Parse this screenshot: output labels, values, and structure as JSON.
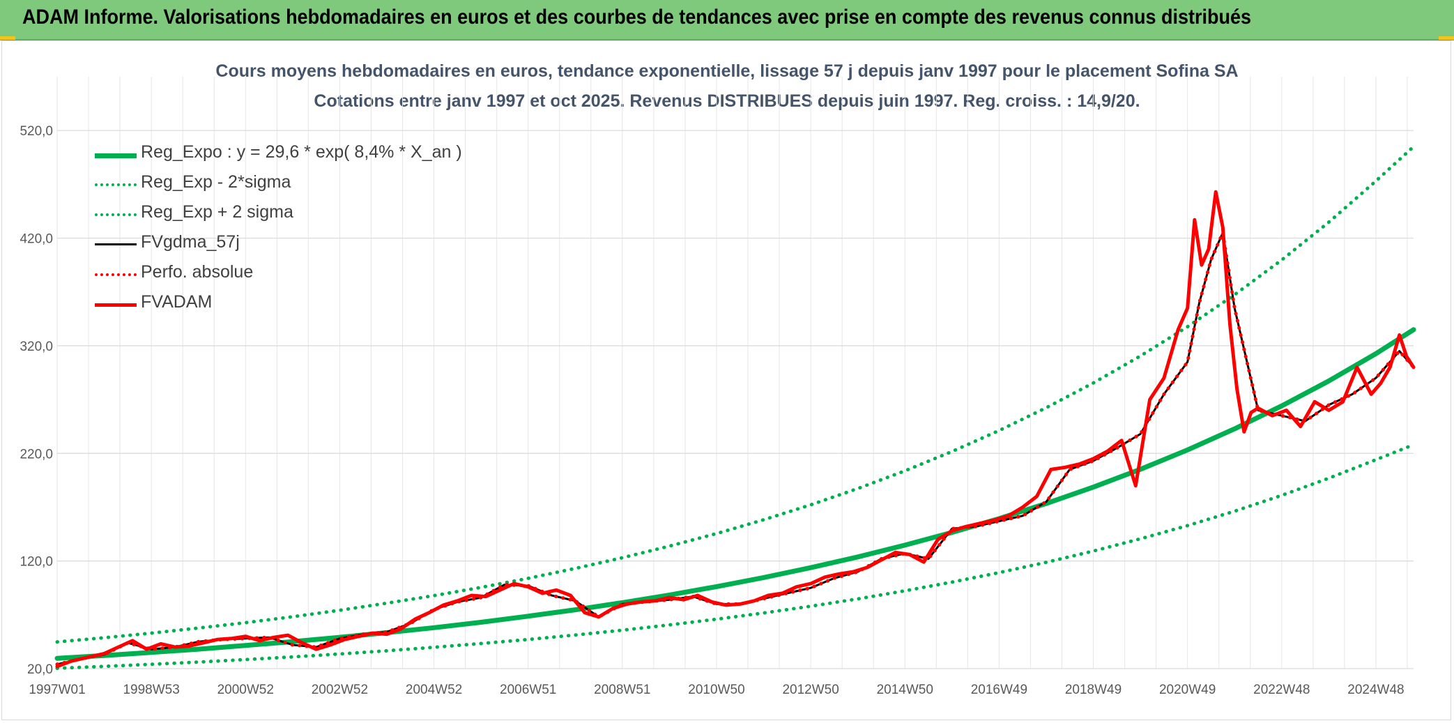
{
  "banner": {
    "title": "ADAM Informe. Valorisations hebdomadaires en euros et des courbes de tendances avec prise en compte des revenus connus distribués"
  },
  "chart_data": {
    "type": "line",
    "title": "Cours moyens hebdomadaires en euros, tendance exponentielle, lissage 57 j depuis janv 1997 pour le placement Sofina SA",
    "subtitle": "Cotations entre janv 1997 et oct 2025. Revenus DISTRIBUES depuis juin 1997. Reg. croiss. : 14,9/20.",
    "xlabel": "",
    "ylabel": "",
    "ylim": [
      20,
      570
    ],
    "yticks": [
      20,
      120,
      220,
      320,
      420,
      520
    ],
    "ytick_labels": [
      "20,0",
      "120,0",
      "220,0",
      "320,0",
      "420,0",
      "520,0"
    ],
    "xlim": [
      1997.0,
      2025.8
    ],
    "xticks": [
      1997.0,
      1999.0,
      2001.0,
      2003.0,
      2005.0,
      2007.0,
      2009.0,
      2011.0,
      2013.0,
      2015.0,
      2017.0,
      2019.0,
      2021.0,
      2023.0,
      2025.0
    ],
    "xtick_labels": [
      "1997W01",
      "1998W53",
      "2000W52",
      "2002W52",
      "2004W52",
      "2006W51",
      "2008W51",
      "2010W50",
      "2012W50",
      "2014W50",
      "2016W49",
      "2018W49",
      "2020W49",
      "2022W48",
      "2024W48"
    ],
    "grid": true,
    "legend_position": "top-left",
    "series": [
      {
        "name": "Reg_Expo : y = 29,6 * exp( 8,4% *  X_an )",
        "style": "solid-thick",
        "color": "#00b050",
        "x": [
          1997.0,
          1998.0,
          1999.0,
          2000.0,
          2001.0,
          2002.0,
          2003.0,
          2004.0,
          2005.0,
          2006.0,
          2007.0,
          2008.0,
          2009.0,
          2010.0,
          2011.0,
          2012.0,
          2013.0,
          2014.0,
          2015.0,
          2016.0,
          2017.0,
          2018.0,
          2019.0,
          2020.0,
          2021.0,
          2022.0,
          2023.0,
          2024.0,
          2025.0,
          2025.8
        ],
        "values": [
          29.6,
          32.2,
          35.0,
          38.1,
          41.5,
          45.1,
          49.1,
          53.4,
          58.0,
          63.1,
          68.7,
          74.7,
          81.3,
          88.4,
          96.2,
          104.6,
          113.8,
          123.8,
          134.7,
          146.5,
          159.4,
          173.4,
          188.6,
          205.2,
          223.2,
          242.8,
          264.1,
          287.3,
          312.6,
          335.0
        ]
      },
      {
        "name": "Reg_Exp - 2*sigma",
        "style": "dotted",
        "color": "#00b050",
        "x": [
          1997.0,
          1998.0,
          1999.0,
          2000.0,
          2001.0,
          2002.0,
          2003.0,
          2004.0,
          2005.0,
          2006.0,
          2007.0,
          2008.0,
          2009.0,
          2010.0,
          2011.0,
          2012.0,
          2013.0,
          2014.0,
          2015.0,
          2016.0,
          2017.0,
          2018.0,
          2019.0,
          2020.0,
          2021.0,
          2022.0,
          2023.0,
          2024.0,
          2025.0,
          2025.8
        ],
        "values": [
          20.3,
          22.1,
          24.0,
          26.1,
          28.4,
          30.9,
          33.6,
          36.6,
          39.8,
          43.3,
          47.1,
          51.2,
          55.7,
          60.6,
          65.9,
          71.7,
          78.0,
          84.8,
          92.3,
          100.4,
          109.2,
          118.8,
          129.2,
          140.6,
          152.9,
          166.3,
          181.0,
          196.9,
          214.1,
          228.0
        ]
      },
      {
        "name": "Reg_Exp + 2 sigma",
        "style": "dotted",
        "color": "#00b050",
        "x": [
          1997.0,
          1998.0,
          1999.0,
          2000.0,
          2001.0,
          2002.0,
          2003.0,
          2004.0,
          2005.0,
          2006.0,
          2007.0,
          2008.0,
          2009.0,
          2010.0,
          2011.0,
          2012.0,
          2013.0,
          2014.0,
          2015.0,
          2016.0,
          2017.0,
          2018.0,
          2019.0,
          2020.0,
          2021.0,
          2022.0,
          2023.0,
          2024.0,
          2025.0,
          2025.8
        ],
        "values": [
          44.8,
          48.7,
          53.0,
          57.7,
          62.7,
          68.2,
          74.2,
          80.8,
          87.8,
          95.5,
          103.9,
          113.1,
          123.0,
          133.8,
          145.5,
          158.3,
          172.2,
          187.3,
          203.8,
          221.7,
          241.2,
          262.4,
          285.4,
          310.5,
          337.7,
          367.4,
          399.7,
          434.8,
          473.0,
          505.0
        ]
      },
      {
        "name": "FVgdma_57j",
        "style": "solid",
        "color": "#000000",
        "x": [
          1997.0,
          1997.5,
          1998.0,
          1998.5,
          1999.0,
          1999.5,
          2000.0,
          2000.5,
          2001.0,
          2001.5,
          2002.0,
          2002.5,
          2003.0,
          2003.5,
          2004.0,
          2004.5,
          2005.0,
          2005.5,
          2006.0,
          2006.5,
          2007.0,
          2007.5,
          2008.0,
          2008.5,
          2009.0,
          2009.5,
          2010.0,
          2010.5,
          2011.0,
          2011.5,
          2012.0,
          2012.5,
          2013.0,
          2013.5,
          2014.0,
          2014.5,
          2015.0,
          2015.5,
          2016.0,
          2016.5,
          2017.0,
          2017.5,
          2018.0,
          2018.5,
          2019.0,
          2019.5,
          2020.0,
          2020.5,
          2021.0,
          2021.25,
          2021.5,
          2021.75,
          2022.0,
          2022.5,
          2023.0,
          2023.5,
          2024.0,
          2024.5,
          2025.0,
          2025.5,
          2025.8
        ],
        "values": [
          24,
          29,
          33,
          44,
          38,
          40,
          45,
          47,
          48,
          49,
          42,
          40,
          48,
          52,
          54,
          62,
          75,
          82,
          86,
          98,
          97,
          88,
          83,
          68,
          80,
          82,
          84,
          87,
          80,
          80,
          85,
          90,
          95,
          104,
          110,
          122,
          127,
          122,
          150,
          152,
          157,
          162,
          175,
          205,
          213,
          225,
          238,
          275,
          305,
          360,
          400,
          425,
          355,
          260,
          255,
          250,
          265,
          275,
          290,
          315,
          300
        ]
      },
      {
        "name": "Perfo. absolue",
        "style": "dotted",
        "color": "#ff0000",
        "x": [
          1997.0,
          1997.5,
          1998.0,
          1998.5,
          1999.0,
          1999.5,
          2000.0,
          2000.5,
          2001.0,
          2001.5,
          2002.0,
          2002.5,
          2003.0,
          2003.5,
          2004.0,
          2004.5,
          2005.0,
          2005.5,
          2006.0,
          2006.5,
          2007.0,
          2007.5,
          2008.0,
          2008.5,
          2009.0,
          2009.5,
          2010.0,
          2010.5,
          2011.0,
          2011.5,
          2012.0,
          2012.5,
          2013.0,
          2013.5,
          2014.0,
          2014.5,
          2015.0,
          2015.5,
          2016.0,
          2016.5,
          2017.0,
          2017.5,
          2018.0,
          2018.5,
          2019.0,
          2019.5,
          2020.0,
          2020.5,
          2021.0,
          2021.25,
          2021.5,
          2021.75,
          2022.0,
          2022.5,
          2023.0,
          2023.5,
          2024.0,
          2024.5,
          2025.0,
          2025.5,
          2025.8
        ],
        "values": [
          24,
          29,
          33,
          44,
          38,
          40,
          45,
          47,
          48,
          49,
          42,
          40,
          48,
          52,
          54,
          62,
          75,
          82,
          86,
          98,
          97,
          88,
          83,
          68,
          80,
          82,
          84,
          87,
          80,
          80,
          85,
          90,
          95,
          104,
          110,
          122,
          127,
          122,
          150,
          152,
          157,
          162,
          175,
          205,
          213,
          225,
          238,
          275,
          305,
          360,
          400,
          425,
          355,
          260,
          255,
          250,
          265,
          275,
          290,
          315,
          300
        ]
      },
      {
        "name": "FVADAM",
        "style": "solid-thick",
        "color": "#ff0000",
        "x": [
          1997.0,
          1997.3,
          1997.6,
          1998.0,
          1998.3,
          1998.6,
          1998.9,
          1999.2,
          1999.5,
          1999.8,
          2000.1,
          2000.4,
          2000.7,
          2001.0,
          2001.3,
          2001.6,
          2001.9,
          2002.2,
          2002.5,
          2002.8,
          2003.1,
          2003.4,
          2003.7,
          2004.0,
          2004.3,
          2004.6,
          2004.9,
          2005.2,
          2005.5,
          2005.8,
          2006.1,
          2006.4,
          2006.7,
          2007.0,
          2007.3,
          2007.6,
          2007.9,
          2008.2,
          2008.5,
          2008.8,
          2009.1,
          2009.4,
          2009.7,
          2010.0,
          2010.3,
          2010.6,
          2010.9,
          2011.2,
          2011.5,
          2011.8,
          2012.1,
          2012.4,
          2012.7,
          2013.0,
          2013.3,
          2013.6,
          2013.9,
          2014.2,
          2014.5,
          2014.8,
          2015.1,
          2015.4,
          2015.7,
          2016.0,
          2016.3,
          2016.6,
          2016.9,
          2017.2,
          2017.5,
          2017.8,
          2018.1,
          2018.4,
          2018.7,
          2019.0,
          2019.3,
          2019.6,
          2019.9,
          2020.2,
          2020.5,
          2020.8,
          2021.0,
          2021.15,
          2021.3,
          2021.45,
          2021.6,
          2021.75,
          2021.9,
          2022.05,
          2022.2,
          2022.35,
          2022.5,
          2022.8,
          2023.1,
          2023.4,
          2023.7,
          2024.0,
          2024.3,
          2024.6,
          2024.9,
          2025.1,
          2025.3,
          2025.5,
          2025.65,
          2025.8
        ],
        "values": [
          22,
          27,
          30,
          34,
          40,
          46,
          38,
          43,
          40,
          41,
          44,
          47,
          48,
          50,
          46,
          49,
          51,
          44,
          38,
          42,
          47,
          50,
          53,
          52,
          57,
          66,
          72,
          79,
          83,
          88,
          87,
          93,
          99,
          96,
          90,
          93,
          88,
          72,
          68,
          76,
          80,
          82,
          83,
          86,
          84,
          88,
          82,
          79,
          80,
          83,
          88,
          90,
          96,
          99,
          105,
          108,
          110,
          114,
          121,
          128,
          126,
          119,
          140,
          148,
          152,
          155,
          158,
          162,
          170,
          180,
          205,
          207,
          210,
          215,
          222,
          232,
          190,
          270,
          290,
          335,
          355,
          437,
          395,
          410,
          463,
          430,
          340,
          280,
          240,
          258,
          262,
          255,
          260,
          245,
          268,
          260,
          268,
          300,
          275,
          285,
          300,
          330,
          310,
          300
        ]
      }
    ]
  }
}
